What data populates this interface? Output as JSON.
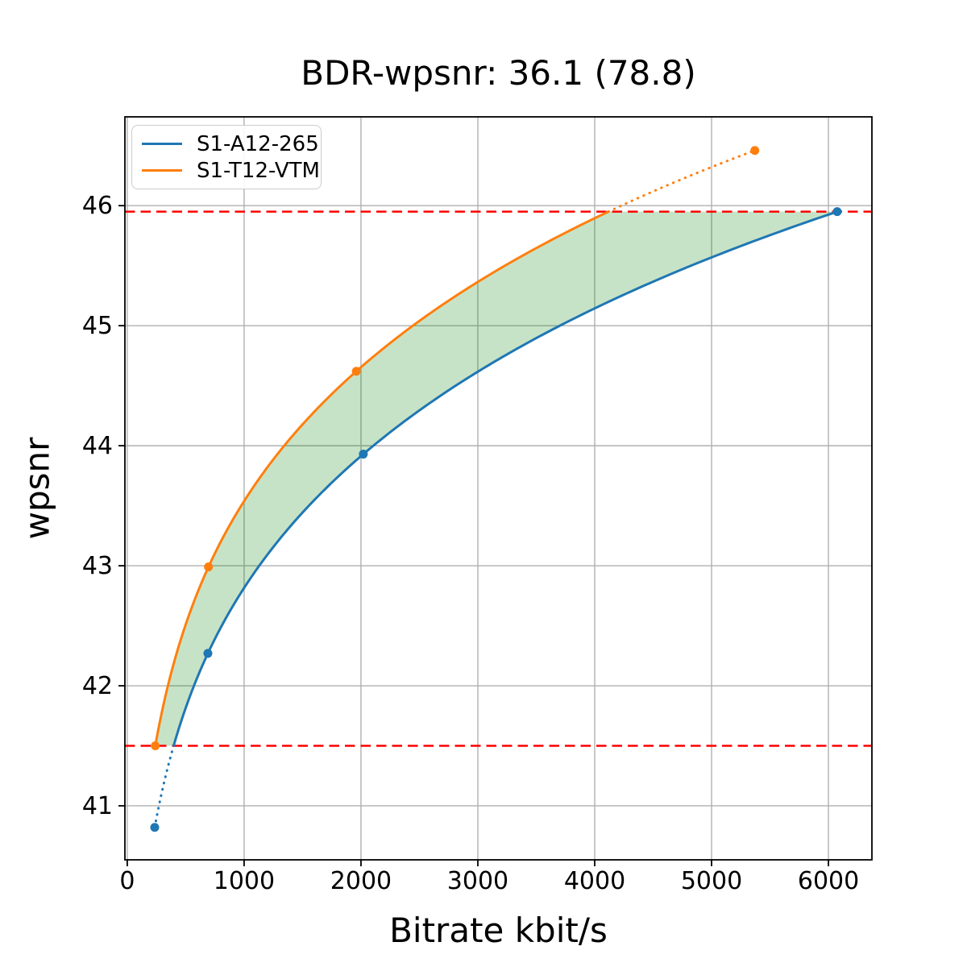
{
  "title": "BDR-wpsnr: 36.1 (78.8)",
  "chart_data": {
    "type": "line",
    "title": "BDR-wpsnr: 36.1 (78.8)",
    "xlabel": "Bitrate kbit/s",
    "ylabel": "wpsnr",
    "xlim": [
      -20,
      6372
    ],
    "ylim": [
      40.55,
      46.74
    ],
    "x_ticks": [
      0,
      1000,
      2000,
      3000,
      4000,
      5000,
      6000
    ],
    "y_ticks": [
      41,
      42,
      43,
      44,
      45,
      46
    ],
    "grid": true,
    "legend_position": "upper left",
    "interpolation": "monotone-cubic-log-x",
    "series": [
      {
        "name": "S1-A12-265",
        "color": "#1f77b4",
        "x": [
          235,
          690,
          2020,
          6075
        ],
        "y": [
          40.82,
          42.27,
          43.93,
          45.95
        ]
      },
      {
        "name": "S1-T12-VTM",
        "color": "#ff7f0e",
        "x": [
          240,
          695,
          1960,
          5370
        ],
        "y": [
          41.5,
          42.99,
          44.62,
          46.46
        ]
      }
    ],
    "hlines": [
      {
        "y": 41.5,
        "color": "#ff0000",
        "style": "dashed"
      },
      {
        "y": 45.95,
        "color": "#ff0000",
        "style": "dashed"
      }
    ],
    "shaded_region": {
      "between": [
        "S1-T12-VTM",
        "S1-A12-265"
      ],
      "y_bounds": [
        41.5,
        45.95
      ],
      "color": "rgba(0,128,0,0.22)"
    },
    "colors": {
      "grid": "#b0b0b0",
      "spine": "#000000",
      "tick_label": "#000000"
    }
  }
}
